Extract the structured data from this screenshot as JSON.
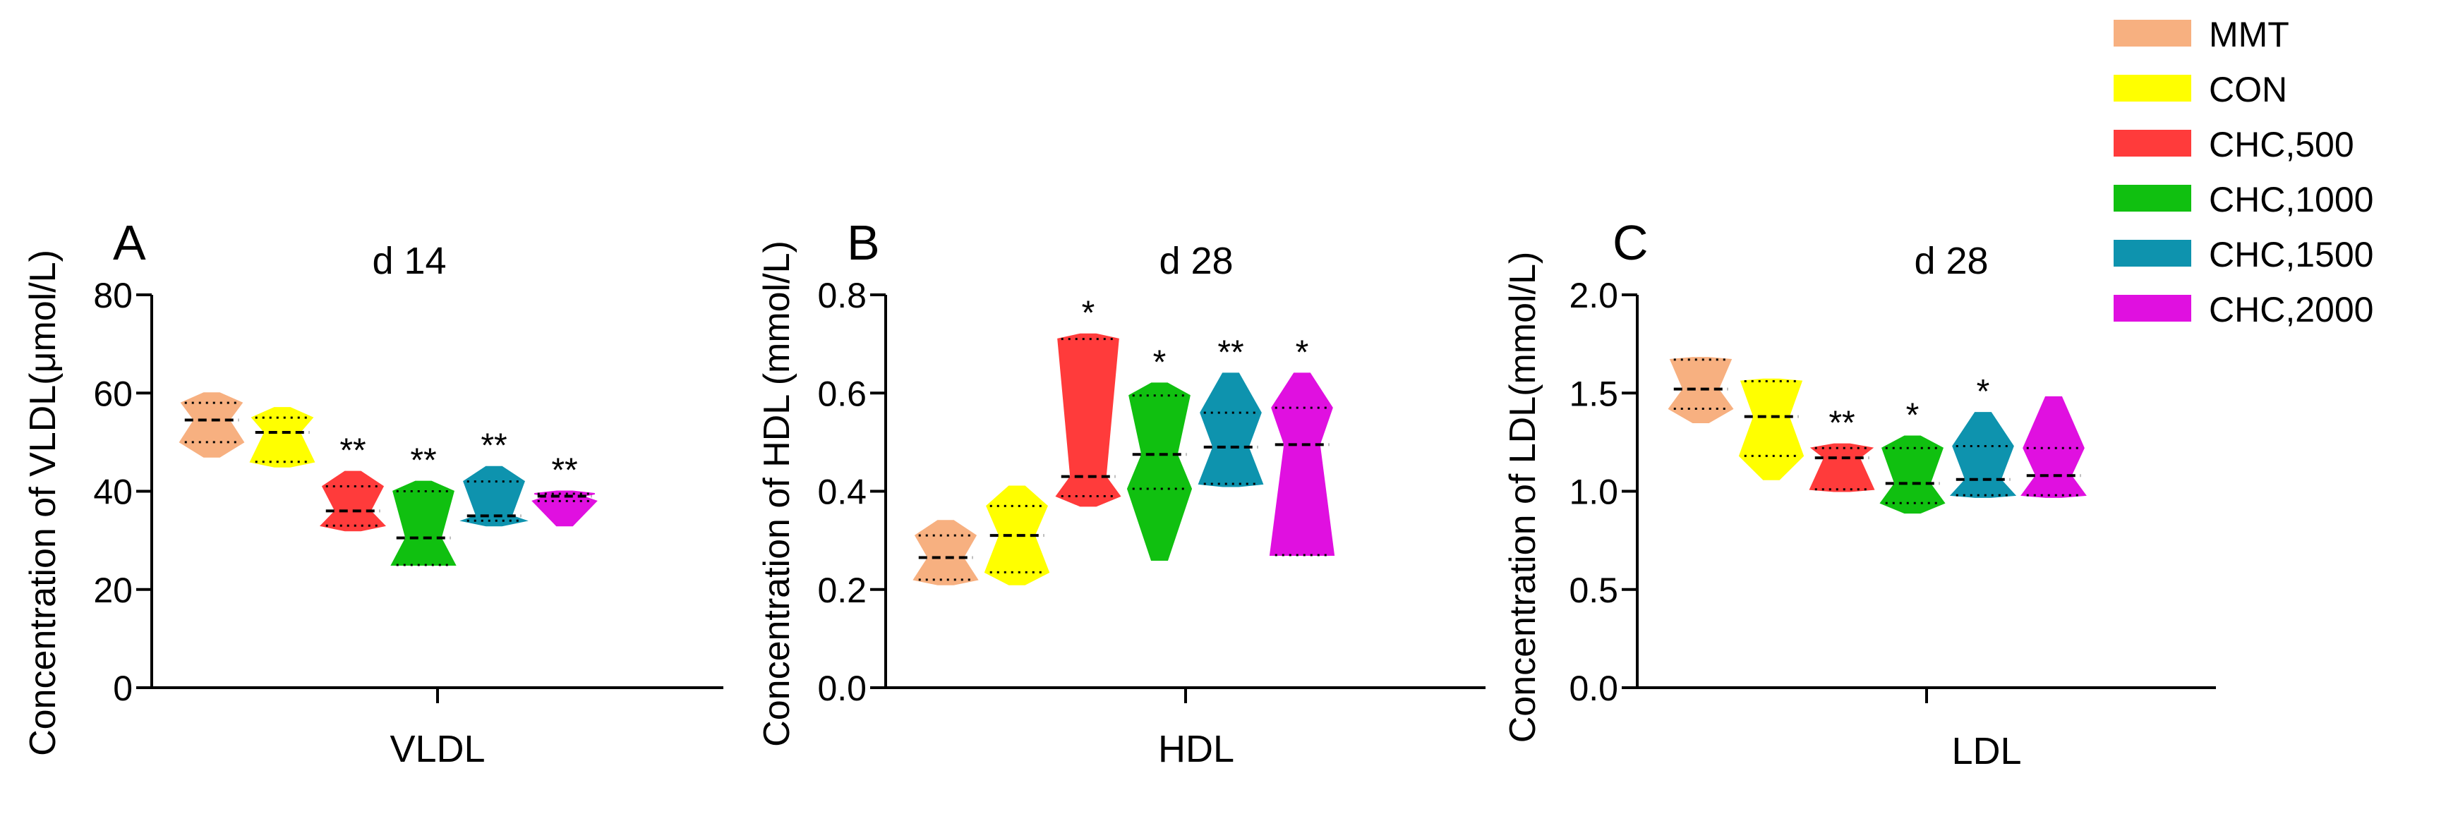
{
  "legend": {
    "items": [
      {
        "label": "MMT",
        "color": "#F7B080"
      },
      {
        "label": "CON",
        "color": "#FFFF00"
      },
      {
        "label": "CHC,500",
        "color": "#FF3B3B"
      },
      {
        "label": "CHC,1000",
        "color": "#10C010"
      },
      {
        "label": "CHC,1500",
        "color": "#0E93AE"
      },
      {
        "label": "CHC,2000",
        "color": "#E010E0"
      }
    ]
  },
  "chart_data": [
    {
      "type": "violin",
      "panel_letter": "A",
      "title": "d 14",
      "ylabel": "Concentration of VLDL(μmol/L)",
      "xlabel": "VLDL",
      "ylim": [
        0,
        80
      ],
      "yticks": [
        "0",
        "20",
        "40",
        "60",
        "80"
      ],
      "groups": [
        {
          "name": "MMT",
          "color": "#F7B080",
          "min": 47,
          "max": 60,
          "q1": 50,
          "median": 54.5,
          "q3": 58,
          "sig": ""
        },
        {
          "name": "CON",
          "color": "#FFFF00",
          "min": 45,
          "max": 57,
          "q1": 46,
          "median": 52,
          "q3": 55,
          "sig": ""
        },
        {
          "name": "CHC,500",
          "color": "#FF3B3B",
          "min": 32,
          "max": 44,
          "q1": 33,
          "median": 36,
          "q3": 41,
          "sig": "**"
        },
        {
          "name": "CHC,1000",
          "color": "#10C010",
          "min": 25,
          "max": 42,
          "q1": 25,
          "median": 30.5,
          "q3": 40,
          "sig": "**"
        },
        {
          "name": "CHC,1500",
          "color": "#0E93AE",
          "min": 33,
          "max": 45,
          "q1": 34,
          "median": 35,
          "q3": 42,
          "sig": "**"
        },
        {
          "name": "CHC,2000",
          "color": "#E010E0",
          "min": 33,
          "max": 40,
          "q1": 38,
          "median": 39,
          "q3": 39.5,
          "sig": "**"
        }
      ]
    },
    {
      "type": "violin",
      "panel_letter": "B",
      "title": "d 28",
      "ylabel": "Concentration of HDL (mmol/L)",
      "xlabel": "HDL",
      "ylim": [
        0,
        0.8
      ],
      "yticks": [
        "0.0",
        "0.2",
        "0.4",
        "0.6",
        "0.8"
      ],
      "groups": [
        {
          "name": "MMT",
          "color": "#F7B080",
          "min": 0.21,
          "max": 0.34,
          "q1": 0.22,
          "median": 0.265,
          "q3": 0.31,
          "sig": ""
        },
        {
          "name": "CON",
          "color": "#FFFF00",
          "min": 0.21,
          "max": 0.41,
          "q1": 0.235,
          "median": 0.31,
          "q3": 0.37,
          "sig": ""
        },
        {
          "name": "CHC,500",
          "color": "#FF3B3B",
          "min": 0.37,
          "max": 0.72,
          "q1": 0.39,
          "median": 0.43,
          "q3": 0.71,
          "sig": "*"
        },
        {
          "name": "CHC,1000",
          "color": "#10C010",
          "min": 0.26,
          "max": 0.62,
          "q1": 0.405,
          "median": 0.475,
          "q3": 0.595,
          "sig": "*"
        },
        {
          "name": "CHC,1500",
          "color": "#0E93AE",
          "min": 0.41,
          "max": 0.64,
          "q1": 0.415,
          "median": 0.49,
          "q3": 0.56,
          "sig": "**"
        },
        {
          "name": "CHC,2000",
          "color": "#E010E0",
          "min": 0.27,
          "max": 0.64,
          "q1": 0.27,
          "median": 0.495,
          "q3": 0.57,
          "sig": "*"
        }
      ]
    },
    {
      "type": "violin",
      "panel_letter": "C",
      "title": "d 28",
      "ylabel": "Concentration of LDL(mmol/L)",
      "xlabel": "LDL",
      "ylim": [
        0,
        2.0
      ],
      "yticks": [
        "0.0",
        "0.5",
        "1.0",
        "1.5",
        "2.0"
      ],
      "groups": [
        {
          "name": "MMT",
          "color": "#F7B080",
          "min": 1.35,
          "max": 1.68,
          "q1": 1.42,
          "median": 1.52,
          "q3": 1.67,
          "sig": ""
        },
        {
          "name": "CON",
          "color": "#FFFF00",
          "min": 1.06,
          "max": 1.57,
          "q1": 1.18,
          "median": 1.38,
          "q3": 1.56,
          "sig": ""
        },
        {
          "name": "CHC,500",
          "color": "#FF3B3B",
          "min": 1.0,
          "max": 1.24,
          "q1": 1.01,
          "median": 1.17,
          "q3": 1.22,
          "sig": "**"
        },
        {
          "name": "CHC,1000",
          "color": "#10C010",
          "min": 0.89,
          "max": 1.28,
          "q1": 0.94,
          "median": 1.04,
          "q3": 1.22,
          "sig": "*"
        },
        {
          "name": "CHC,1500",
          "color": "#0E93AE",
          "min": 0.97,
          "max": 1.4,
          "q1": 0.98,
          "median": 1.06,
          "q3": 1.23,
          "sig": "*"
        },
        {
          "name": "CHC,2000",
          "color": "#E010E0",
          "min": 0.97,
          "max": 1.48,
          "q1": 0.98,
          "median": 1.08,
          "q3": 1.22,
          "sig": ""
        }
      ]
    }
  ]
}
